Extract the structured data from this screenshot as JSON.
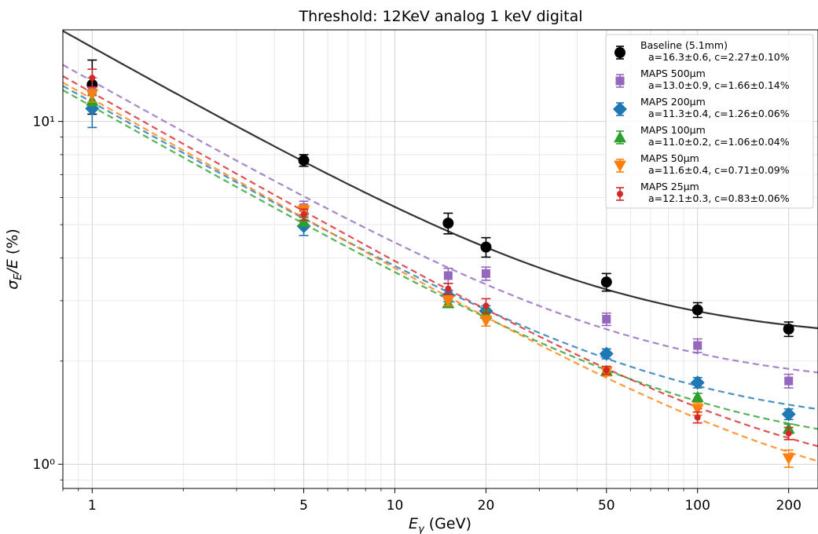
{
  "chart_data": {
    "type": "scatter",
    "title": "Threshold: 12KeV analog 1 keV digital",
    "xlabel": "E_γ (GeV)",
    "ylabel": "σ_E/E  (%)",
    "xscale": "log",
    "yscale": "log",
    "xlim": [
      0.8,
      250
    ],
    "ylim": [
      0.85,
      18.5
    ],
    "xticks": [
      "1",
      "5",
      "10",
      "20",
      "50",
      "100",
      "200"
    ],
    "yticks": [
      "10⁰",
      "10¹"
    ],
    "grid": true,
    "legend_position": "top-right",
    "series": [
      {
        "name": "Baseline (5.1mm)",
        "fit_label": "a=16.3±0.6,  c=2.27±0.10%",
        "color": "#000000",
        "marker": "circle",
        "line_style": "solid",
        "fit": {
          "a": 16.3,
          "c": 2.27
        },
        "x": [
          1,
          5,
          15,
          20,
          50,
          100,
          200
        ],
        "y": [
          12.8,
          7.7,
          5.05,
          4.3,
          3.4,
          2.82,
          2.48
        ],
        "err": [
          2.3,
          0.3,
          0.35,
          0.28,
          0.2,
          0.14,
          0.12
        ]
      },
      {
        "name": "MAPS 500μm",
        "fit_label": "a=13.0±0.9,  c=1.66±0.14%",
        "color": "#9467bd",
        "marker": "square",
        "line_style": "dashed",
        "fit": {
          "a": 13.0,
          "c": 1.66
        },
        "x": [
          1,
          5,
          15,
          20,
          50,
          100,
          200
        ],
        "y": [
          12.2,
          5.6,
          3.55,
          3.6,
          2.65,
          2.22,
          1.75
        ],
        "err": [
          1.2,
          0.25,
          0.18,
          0.16,
          0.11,
          0.1,
          0.08
        ]
      },
      {
        "name": "MAPS 200μm",
        "fit_label": "a=11.3±0.4,  c=1.26±0.06%",
        "color": "#1f77b4",
        "marker": "diamond",
        "line_style": "dashed",
        "fit": {
          "a": 11.3,
          "c": 1.26
        },
        "x": [
          1,
          5,
          15,
          20,
          50,
          100,
          200
        ],
        "y": [
          10.9,
          4.95,
          3.1,
          2.8,
          2.1,
          1.73,
          1.4
        ],
        "err": [
          1.3,
          0.3,
          0.12,
          0.1,
          0.07,
          0.06,
          0.05
        ]
      },
      {
        "name": "MAPS 100μm",
        "fit_label": "a=11.0±0.2,  c=1.06±0.04%",
        "color": "#2ca02c",
        "marker": "triangle-up",
        "line_style": "dashed",
        "fit": {
          "a": 11.0,
          "c": 1.06
        },
        "x": [
          1,
          5,
          15,
          20,
          50,
          100,
          200
        ],
        "y": [
          11.5,
          5.1,
          2.95,
          2.75,
          1.87,
          1.57,
          1.27
        ],
        "err": [
          0.4,
          0.15,
          0.08,
          0.07,
          0.05,
          0.04,
          0.04
        ]
      },
      {
        "name": "MAPS 50μm",
        "fit_label": "a=11.6±0.4,  c=0.71±0.09%",
        "color": "#ff7f0e",
        "marker": "triangle-down",
        "line_style": "dashed",
        "fit": {
          "a": 11.6,
          "c": 0.71
        },
        "x": [
          1,
          5,
          15,
          20,
          50,
          100,
          200
        ],
        "y": [
          12.0,
          5.5,
          3.0,
          2.62,
          1.86,
          1.45,
          1.04
        ],
        "err": [
          0.6,
          0.2,
          0.1,
          0.09,
          0.05,
          0.06,
          0.06
        ]
      },
      {
        "name": "MAPS 25μm",
        "fit_label": "a=12.1±0.3,  c=0.83±0.06%",
        "color": "#d62728",
        "marker": "small-circle",
        "line_style": "dashed",
        "fit": {
          "a": 12.1,
          "c": 0.83
        },
        "x": [
          1,
          5,
          15,
          20,
          50,
          100,
          200
        ],
        "y": [
          13.4,
          5.35,
          3.25,
          2.9,
          1.88,
          1.37,
          1.23
        ],
        "err": [
          0.8,
          0.2,
          0.12,
          0.14,
          0.05,
          0.05,
          0.05
        ]
      }
    ]
  }
}
